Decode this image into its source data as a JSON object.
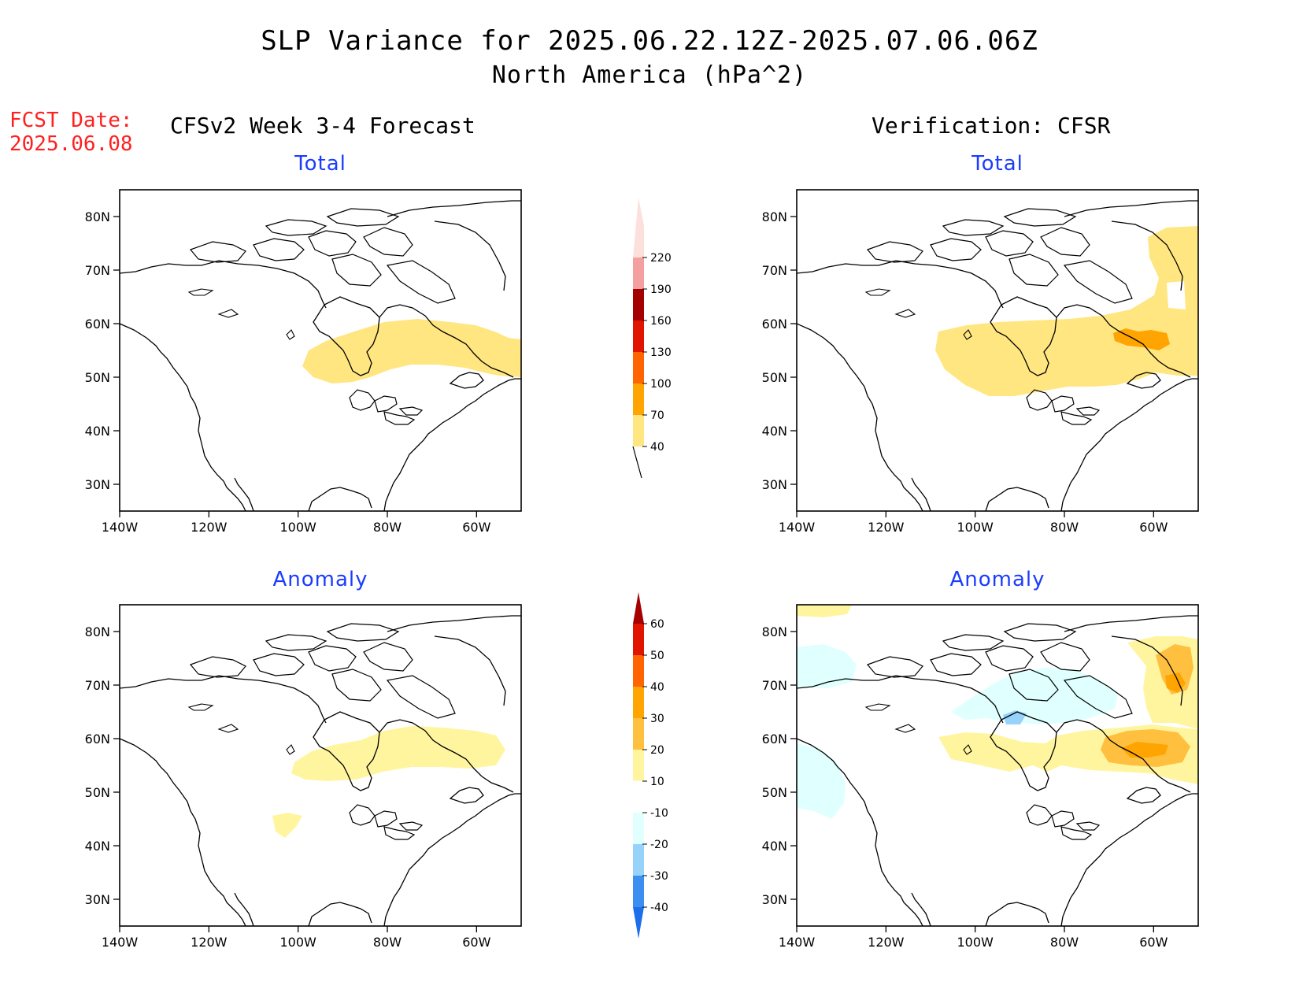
{
  "header": {
    "title": "SLP Variance for 2025.06.22.12Z-2025.07.06.06Z",
    "subtitle": "North America (hPa^2)",
    "fcst_label": "FCST Date:",
    "fcst_date": "2025.06.08"
  },
  "columns": {
    "left": "CFSv2 Week 3-4 Forecast",
    "right": "Verification: CFSR"
  },
  "panel_titles": {
    "total": "Total",
    "anomaly": "Anomaly"
  },
  "map": {
    "lat_labels": [
      "80N",
      "70N",
      "60N",
      "50N",
      "40N",
      "30N"
    ],
    "lon_labels": [
      "140W",
      "120W",
      "100W",
      "80W",
      "60W"
    ],
    "lat_values": [
      80,
      70,
      60,
      50,
      40,
      30
    ],
    "lon_values": [
      -140,
      -120,
      -100,
      -80,
      -60
    ],
    "lon_range": [
      -140,
      -50
    ],
    "lat_range": [
      25,
      85
    ]
  },
  "colorbars": {
    "total": {
      "levels": [
        "40",
        "70",
        "100",
        "130",
        "160",
        "190",
        "220"
      ],
      "colors": [
        "#ffe680",
        "#ffa400",
        "#ff6400",
        "#e11400",
        "#a50000",
        "#f4a0a0",
        "#fde0dc"
      ]
    },
    "anomaly": {
      "levels": [
        "60",
        "50",
        "40",
        "30",
        "20",
        "10",
        "-10",
        "-20",
        "-30",
        "-40"
      ],
      "colors": [
        "#a50000",
        "#e11400",
        "#ff6400",
        "#ffa400",
        "#ffc040",
        "#fff59f",
        "#ffffff",
        "#e0ffff",
        "#96d2fa",
        "#3c8ff0",
        "#1e6eeb"
      ]
    }
  },
  "legend_colors": {
    "light_yellow": "#fff59f",
    "yellow": "#ffe680",
    "orange": "#ffa400",
    "gold": "#ffc040",
    "light_cyan": "#e0ffff",
    "light_blue": "#96d2fa"
  }
}
